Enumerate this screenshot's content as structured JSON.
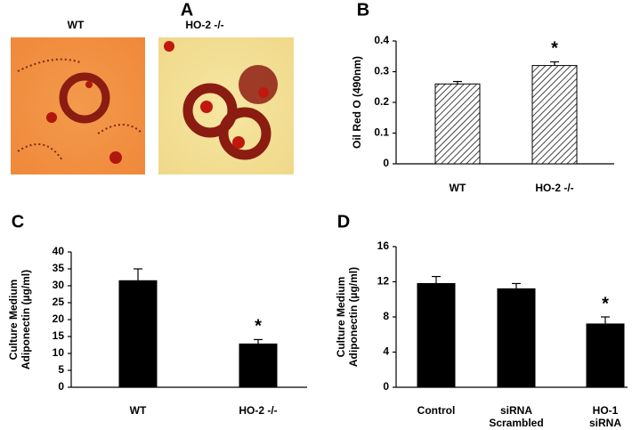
{
  "panel_a": {
    "panel_label": "A",
    "images": [
      {
        "label": "WT"
      },
      {
        "label": "HO-2 -/-"
      }
    ]
  },
  "chart_data": [
    {
      "type": "bar",
      "panel_label": "B",
      "ylabel": [
        "Oil Red O (490nm)"
      ],
      "categories": [
        [
          "WT"
        ],
        [
          "HO-2 -/-"
        ]
      ],
      "values": [
        0.26,
        0.32
      ],
      "errors": [
        0.008,
        0.012
      ],
      "significance": [
        null,
        "*"
      ],
      "color": "#ffffff",
      "hatch": true,
      "ylim": [
        0,
        0.4
      ],
      "yticks": [
        0,
        0.1,
        0.2,
        0.3,
        0.4
      ]
    },
    {
      "type": "bar",
      "panel_label": "C",
      "ylabel": [
        "Culture Medium",
        "Adiponectin (µg/ml)"
      ],
      "categories": [
        [
          "WT"
        ],
        [
          "HO-2 -/-"
        ]
      ],
      "values": [
        31.5,
        12.8
      ],
      "errors": [
        3.5,
        1.3
      ],
      "significance": [
        null,
        "*"
      ],
      "color": "#000000",
      "hatch": false,
      "ylim": [
        0,
        40
      ],
      "yticks": [
        0,
        5,
        10,
        15,
        20,
        25,
        30,
        35,
        40
      ]
    },
    {
      "type": "bar",
      "panel_label": "D",
      "ylabel": [
        "Culture Medium",
        "Adiponectin (µg/ml)"
      ],
      "categories": [
        [
          "Control"
        ],
        [
          "siRNA",
          "Scrambled"
        ],
        [
          "HO-1",
          "siRNA"
        ]
      ],
      "values": [
        11.8,
        11.2,
        7.2
      ],
      "errors": [
        0.8,
        0.6,
        0.8
      ],
      "significance": [
        null,
        null,
        "*"
      ],
      "color": "#000000",
      "hatch": false,
      "ylim": [
        0,
        16
      ],
      "yticks": [
        0,
        4,
        8,
        12,
        16
      ]
    }
  ]
}
